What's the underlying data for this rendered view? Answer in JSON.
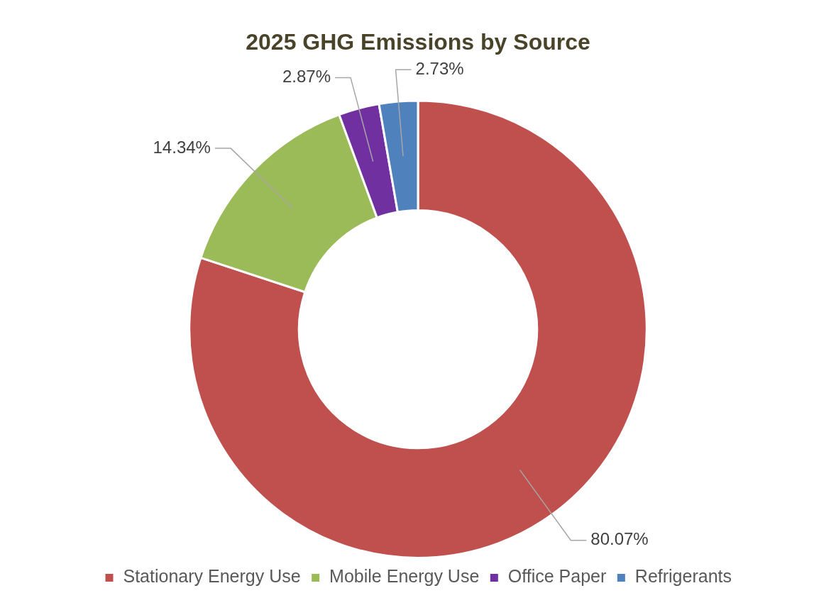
{
  "chart_data": {
    "type": "donut",
    "title": "2025 GHG Emissions by Source",
    "categories": [
      "Stationary Energy Use",
      "Mobile Energy Use",
      "Office Paper",
      "Refrigerants"
    ],
    "values": [
      80.07,
      14.34,
      2.87,
      2.73
    ],
    "colors": [
      "#c0504d",
      "#9bbb59",
      "#7030a0",
      "#4f81bd"
    ],
    "value_labels": [
      "80.07%",
      "14.34%",
      "2.87%",
      "2.73%"
    ],
    "legend": "bottom"
  }
}
